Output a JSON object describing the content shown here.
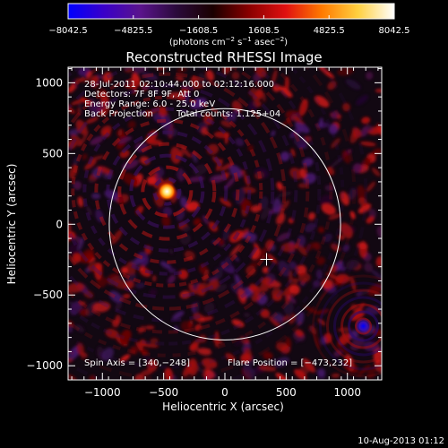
{
  "chart_data": {
    "type": "heatmap",
    "title": "Reconstructed RHESSI Image",
    "xlabel": "Heliocentric X (arcsec)",
    "ylabel": "Heliocentric Y (arcsec)",
    "xlim": [
      -1280,
      1280
    ],
    "ylim": [
      -1100,
      1110
    ],
    "x_ticks": [
      -1000,
      -500,
      0,
      500,
      1000
    ],
    "y_ticks": [
      -1000,
      -500,
      0,
      500,
      1000
    ],
    "x_tick_labels": [
      "−1000",
      "−500",
      "0",
      "500",
      "1000"
    ],
    "y_tick_labels": [
      "−1000",
      "−500",
      "0",
      "500",
      "1000"
    ],
    "colorbar": {
      "min": -8042.5,
      "max": 8042.5,
      "ticks": [
        -8042.5,
        -4825.5,
        -1608.5,
        1608.5,
        4825.5,
        8042.5
      ],
      "tick_labels": [
        "−8042.5",
        "−4825.5",
        "−1608.5",
        "1608.5",
        "4825.5",
        "8042.5"
      ],
      "units_main": "(photons cm",
      "units_exp1": "−2",
      "units_mid": " s",
      "units_exp2": "−1",
      "units_tail": " asec",
      "units_exp3": "−2",
      "units_close": ")",
      "colors": [
        "#0000ff",
        "#3a00c8",
        "#5a148c",
        "#2a0a3a",
        "#1a0000",
        "#8a0000",
        "#e01010",
        "#ff7a00",
        "#ffd040",
        "#ffffff"
      ]
    },
    "info_lines": [
      "28-Jul-2011 02:10:44.000 to 02:12:16.000",
      "Detectors: 7F 8F 9F, Att 0",
      "Energy Range: 6.0 - 25.0 keV",
      "Back Projection",
      "Total counts: 1.125+04"
    ],
    "spin_axis": "Spin Axis = [340,−248]",
    "flare_position_label": "Flare Position = [−473,232]",
    "solar_limb_radius": 944,
    "sources": [
      {
        "name": "flare",
        "x": -473,
        "y": 232,
        "intensity": 8042.5
      },
      {
        "name": "negative-source",
        "x": 1130,
        "y": -720,
        "intensity": -8042.5
      }
    ],
    "spin_axis_xy": [
      340,
      -248
    ],
    "timestamp": "10-Aug-2013 01:12"
  }
}
